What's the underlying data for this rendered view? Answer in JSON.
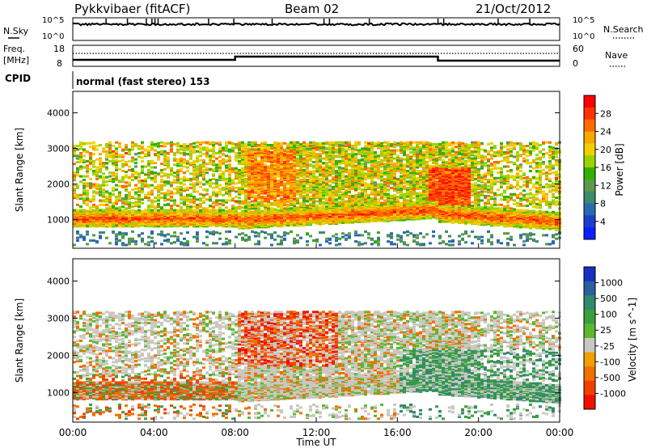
{
  "header": {
    "site": "Pykkvibaer (fitACF)",
    "beam": "Beam 02",
    "date": "21/Oct/2012"
  },
  "top_panel": {
    "left_label": "N.Sky",
    "right_label": "N.Search",
    "left_ticks": [
      "10^5",
      "10^0"
    ],
    "right_ticks": [
      "10^5",
      "10^0"
    ]
  },
  "freq_panel": {
    "left_label_1": "Freq.",
    "left_label_2": "[MHz]",
    "right_label": "Nave",
    "left_ticks": [
      "18",
      "8"
    ],
    "right_ticks": [
      "60",
      "0"
    ]
  },
  "cpid": {
    "label": "CPID",
    "text": "normal (fast stereo) 153"
  },
  "chart_data": [
    {
      "type": "heatmap",
      "name": "power",
      "ylabel": "Slant Range [km]",
      "ylim": [
        200,
        4600
      ],
      "yticks": [
        "1000",
        "2000",
        "3000",
        "4000"
      ],
      "colorbar_label": "Power [dB]",
      "colorbar_ticks": [
        "28",
        "24",
        "20",
        "16",
        "12",
        "8",
        "4"
      ],
      "colorbar_colors": [
        "#ff0000",
        "#ff3300",
        "#ff6a00",
        "#f5a800",
        "#f0d000",
        "#9ad400",
        "#33b000",
        "#5a9a4a",
        "#3f8a6a",
        "#2a6ab0",
        "#1a3fd0",
        "#0a20ff"
      ],
      "range": [
        0,
        40
      ],
      "bands_approx": [
        {
          "start": "00:00",
          "end": "08:00",
          "range_km": [
            700,
            1300
          ],
          "level": "high"
        },
        {
          "start": "08:00",
          "end": "18:00",
          "range_km": [
            900,
            3200
          ],
          "level": "medium"
        },
        {
          "start": "18:00",
          "end": "24:00",
          "range_km": [
            700,
            2500
          ],
          "level": "high"
        }
      ]
    },
    {
      "type": "heatmap",
      "name": "velocity",
      "ylabel": "Slant Range [km]",
      "xlabel": "Time UT",
      "ylim": [
        200,
        4600
      ],
      "yticks": [
        "1000",
        "2000",
        "3000",
        "4000"
      ],
      "xticks": [
        "00:00",
        "04:00",
        "08:00",
        "12:00",
        "16:00",
        "20:00",
        "00:00"
      ],
      "colorbar_label": "Velocity [m s^-1]",
      "colorbar_ticks": [
        "1000",
        "500",
        "100",
        "25",
        "-25",
        "-100",
        "-500",
        "-1000"
      ],
      "colorbar_colors": [
        "#1a2fc0",
        "#2a5fa0",
        "#2f8a6a",
        "#3aa040",
        "#5ab830",
        "#c8c8c0",
        "#f0a000",
        "#f07000",
        "#f04000",
        "#f01000"
      ]
    }
  ]
}
